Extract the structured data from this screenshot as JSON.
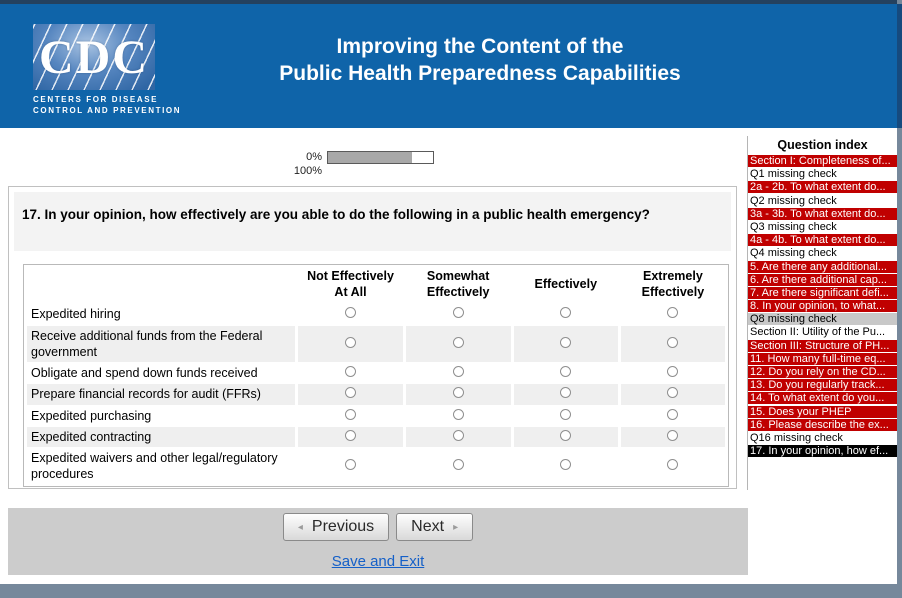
{
  "header": {
    "title_line1": "Improving the Content of the",
    "title_line2": "Public Health Preparedness Capabilities"
  },
  "logo": {
    "acronym": "CDC",
    "org_line1": "CENTERS FOR DISEASE",
    "org_line2": "CONTROL AND PREVENTION"
  },
  "progress": {
    "top_label": "0%",
    "bottom_label": "100%",
    "fill_percent": 80
  },
  "survey": {
    "question": "17. In your opinion, how effectively are you able to do the following in a public health emergency?",
    "answer_columns": [
      "Not Effectively At All",
      "Somewhat Effectively",
      "Effectively",
      "Extremely Effectively"
    ],
    "items": [
      "Expedited hiring",
      "Receive additional funds from the Federal government",
      "Obligate and spend down funds received",
      "Prepare financial records for audit (FFRs)",
      "Expedited purchasing",
      "Expedited contracting",
      "Expedited waivers and other legal/regulatory procedures"
    ]
  },
  "navigation": {
    "previous_label": "Previous",
    "next_label": "Next",
    "save_exit_label": "Save and Exit"
  },
  "question_index": {
    "title": "Question index",
    "items": [
      {
        "label": "Section I: Completeness of...",
        "state": "red"
      },
      {
        "label": "Q1 missing check",
        "state": "plain"
      },
      {
        "label": "2a - 2b. To what extent do...",
        "state": "red"
      },
      {
        "label": "Q2 missing check",
        "state": "plain"
      },
      {
        "label": "3a - 3b. To what extent do...",
        "state": "red"
      },
      {
        "label": "Q3 missing check",
        "state": "plain"
      },
      {
        "label": "4a - 4b. To what extent do...",
        "state": "red"
      },
      {
        "label": "Q4 missing check",
        "state": "plain"
      },
      {
        "label": "5. Are there any additional...",
        "state": "red"
      },
      {
        "label": "6. Are there additional cap...",
        "state": "red"
      },
      {
        "label": "7. Are there significant defi...",
        "state": "red"
      },
      {
        "label": "8. In your opinion, to what...",
        "state": "red"
      },
      {
        "label": "Q8 missing check",
        "state": "gray"
      },
      {
        "label": "Section II: Utility of the Pu...",
        "state": "plain"
      },
      {
        "label": "Section III: Structure of PH...",
        "state": "red"
      },
      {
        "label": "11. How many full-time eq...",
        "state": "red"
      },
      {
        "label": "12. Do you rely on the CD...",
        "state": "red"
      },
      {
        "label": "13. Do you regularly track...",
        "state": "red"
      },
      {
        "label": "14. To what extent do you...",
        "state": "red"
      },
      {
        "label": "15. Does your PHEP",
        "state": "red"
      },
      {
        "label": "16. Please describe the ex...",
        "state": "red"
      },
      {
        "label": "Q16 missing check",
        "state": "plain"
      },
      {
        "label": "17. In your opinion, how ef...",
        "state": "current"
      }
    ]
  },
  "colors": {
    "header_blue": "#0f64a9",
    "top_line_navy": "#24415f",
    "index_alert_red": "#c00000",
    "index_current_black": "#000000",
    "index_done_gray": "#c8c8c8",
    "link_blue": "#1560c8",
    "footer_gray": "#cccccc",
    "frame_slate": "#76889b",
    "row_alt_gray": "#efefef",
    "progress_fill_gray": "#a8a8a8"
  }
}
